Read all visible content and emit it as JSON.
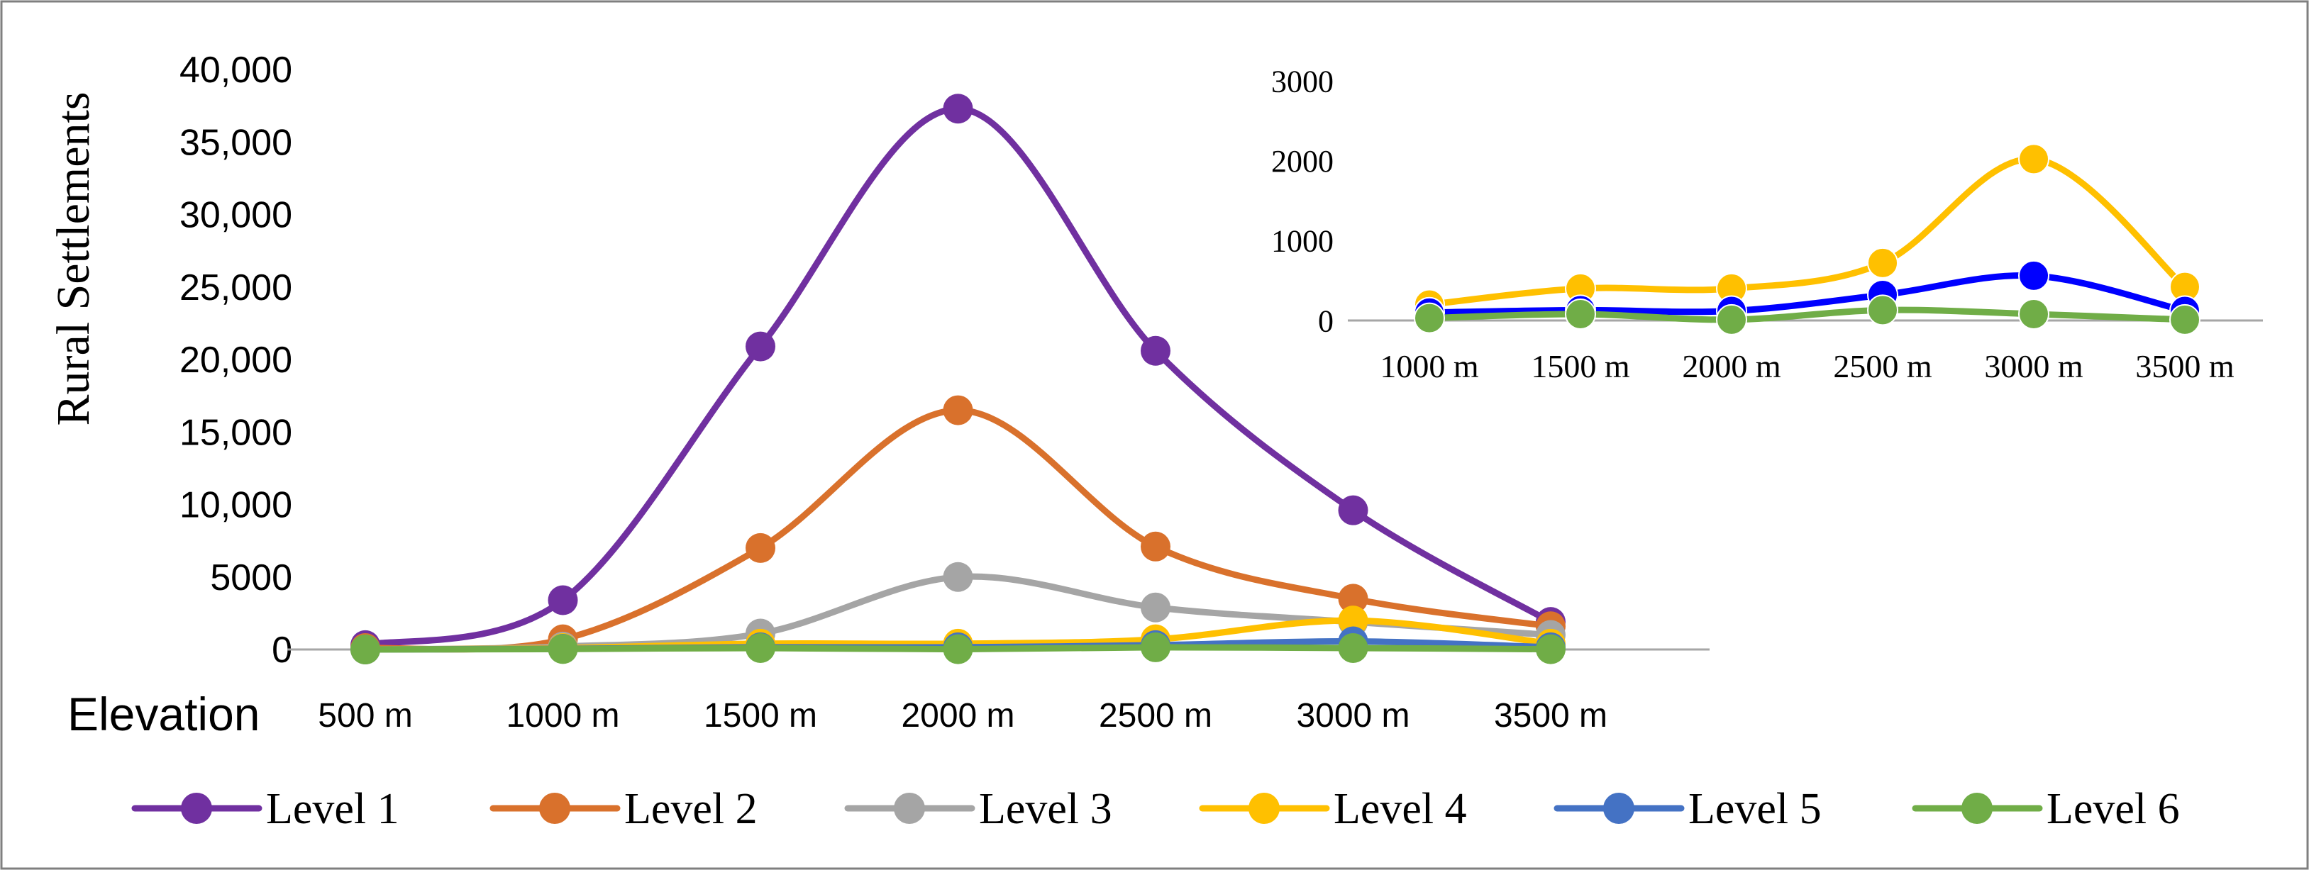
{
  "chart_data": [
    {
      "id": "main",
      "type": "line",
      "smooth": true,
      "ylabel": "Rural Settlements",
      "xlabel": "Elevation",
      "categories": [
        "500 m",
        "1000 m",
        "1500 m",
        "2000 m",
        "2500 m",
        "3000 m",
        "3500 m"
      ],
      "ylim": [
        0,
        40000
      ],
      "yticks": [
        0,
        5000,
        10000,
        15000,
        20000,
        25000,
        30000,
        35000,
        40000
      ],
      "ytick_labels": [
        "0",
        "5000",
        "10,000",
        "15,000",
        "20,000",
        "25,000",
        "30,000",
        "35,000",
        "40,000"
      ],
      "series": [
        {
          "name": "Level 1",
          "color": "#7030A0",
          "values": [
            300,
            3400,
            20900,
            37300,
            20600,
            9600,
            1900
          ]
        },
        {
          "name": "Level 2",
          "color": "#D9712C",
          "values": [
            100,
            700,
            7000,
            16500,
            7100,
            3500,
            1600
          ]
        },
        {
          "name": "Level 3",
          "color": "#A5A5A5",
          "values": [
            0,
            200,
            1100,
            5000,
            2900,
            1900,
            1000
          ]
        },
        {
          "name": "Level 4",
          "color": "#FFC000",
          "values": [
            0,
            100,
            400,
            400,
            700,
            2000,
            400
          ]
        },
        {
          "name": "Level 5",
          "color": "#4472C4",
          "values": [
            0,
            50,
            150,
            150,
            300,
            560,
            150
          ]
        },
        {
          "name": "Level 6",
          "color": "#70AD47",
          "values": [
            0,
            30,
            100,
            20,
            150,
            100,
            20
          ]
        }
      ]
    },
    {
      "id": "inset",
      "type": "line",
      "smooth": true,
      "categories": [
        "1000 m",
        "1500 m",
        "2000 m",
        "2500 m",
        "3000 m",
        "3500 m"
      ],
      "ylim": [
        0,
        3000
      ],
      "yticks": [
        0,
        1000,
        2000,
        3000
      ],
      "ytick_labels": [
        "0",
        "1000",
        "2000",
        "3000"
      ],
      "series": [
        {
          "name": "Level 4",
          "color": "#FFC000",
          "values": [
            200,
            400,
            400,
            720,
            2020,
            420
          ]
        },
        {
          "name": "Level 5",
          "color": "#0000FF",
          "values": [
            100,
            130,
            120,
            320,
            560,
            120
          ]
        },
        {
          "name": "Level 6",
          "color": "#70AD47",
          "values": [
            30,
            80,
            10,
            130,
            80,
            10
          ]
        }
      ]
    }
  ],
  "legend": {
    "items": [
      {
        "label": "Level 1",
        "color": "#7030A0"
      },
      {
        "label": "Level 2",
        "color": "#D9712C"
      },
      {
        "label": "Level 3",
        "color": "#A5A5A5"
      },
      {
        "label": "Level 4",
        "color": "#FFC000"
      },
      {
        "label": "Level 5",
        "color": "#4472C4"
      },
      {
        "label": "Level 6",
        "color": "#70AD47"
      }
    ]
  }
}
